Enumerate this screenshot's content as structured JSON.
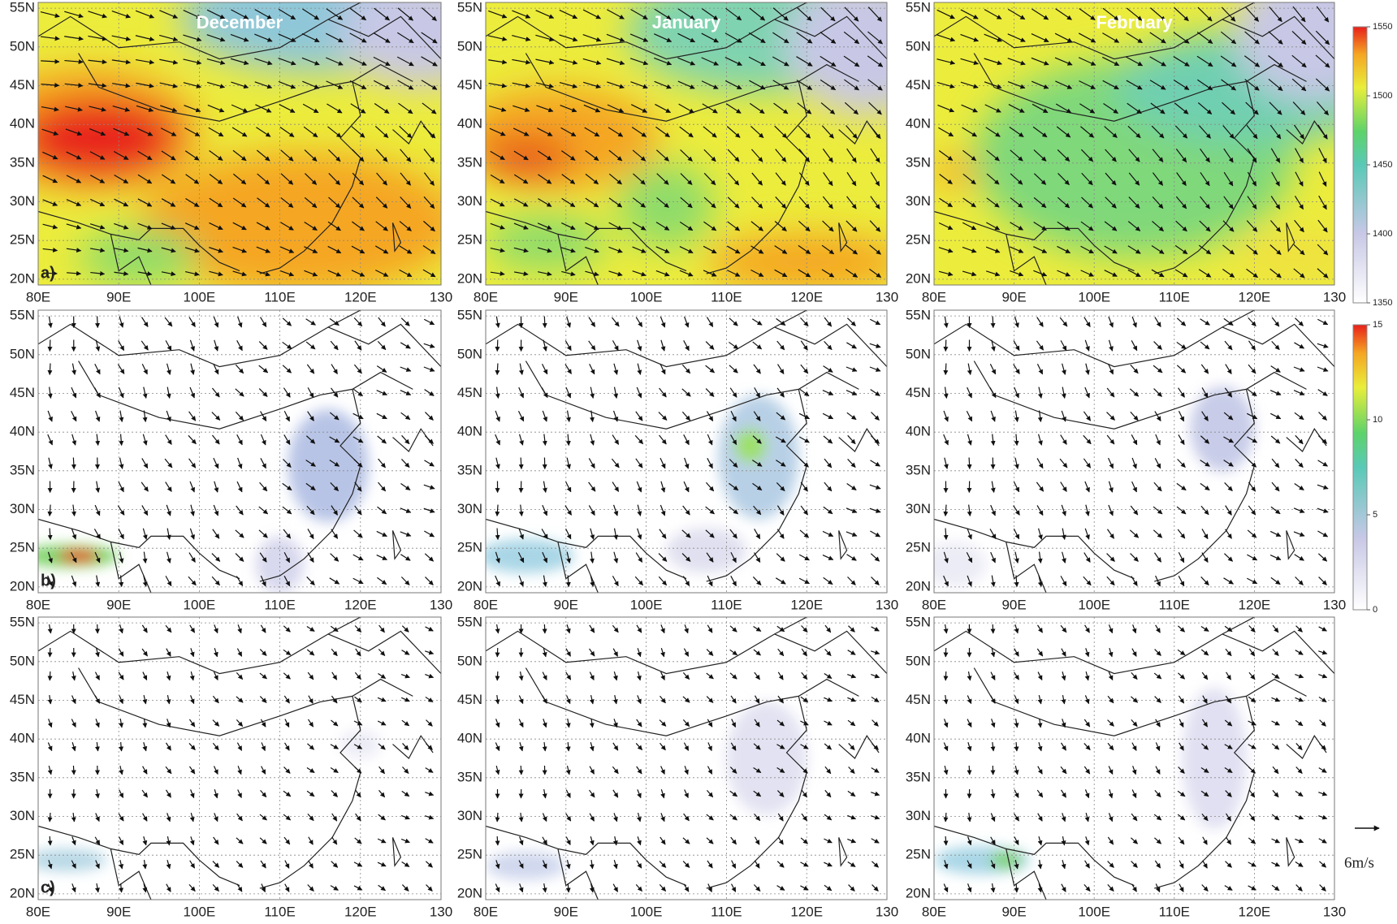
{
  "panel_titles": [
    "December",
    "January",
    "February"
  ],
  "row_labels": [
    "a)",
    "b)",
    "c)"
  ],
  "lat_ticks": [
    "55N",
    "50N",
    "45N",
    "40N",
    "35N",
    "30N",
    "25N",
    "20N"
  ],
  "lon_ticks": [
    "80E",
    "90E",
    "100E",
    "110E",
    "120E",
    "130"
  ],
  "colorbar_top": {
    "ticks": [
      1550,
      1500,
      1450,
      1400,
      1350
    ]
  },
  "colorbar_bottom": {
    "ticks": [
      15,
      10,
      5,
      0
    ]
  },
  "wind_legend": "6m/s"
}
